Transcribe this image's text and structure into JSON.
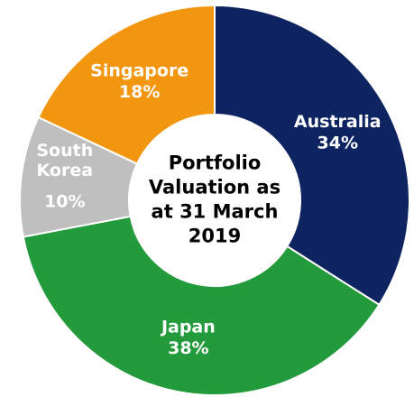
{
  "chart_data": {
    "type": "donut",
    "title": "Portfolio Valuation as at 31 March 2019",
    "categories": [
      "Australia",
      "Japan",
      "South Korea",
      "Singapore"
    ],
    "values": [
      34,
      38,
      10,
      18
    ],
    "value_labels": [
      "34%",
      "38%",
      "10%",
      "18%"
    ],
    "colors": [
      "#0d2461",
      "#239a3b",
      "#bfbfbf",
      "#f3960f"
    ]
  }
}
